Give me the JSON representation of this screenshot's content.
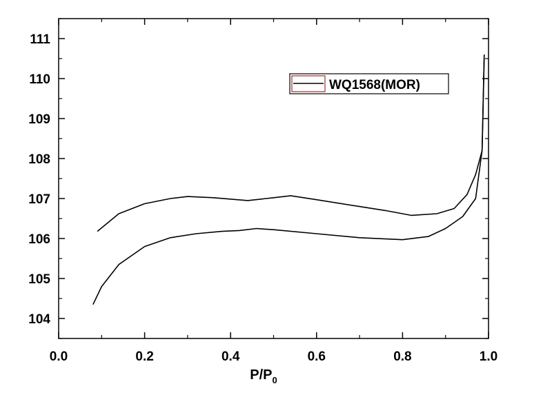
{
  "chart_data": {
    "type": "line",
    "title": "",
    "xlabel": "P/P",
    "xlabel_subscript": "0",
    "ylabel": "",
    "xlim": [
      0.0,
      1.0
    ],
    "ylim": [
      103.5,
      111.5
    ],
    "x_ticks": [
      {
        "value": 0.0,
        "label": "0.0"
      },
      {
        "value": 0.2,
        "label": "0.2"
      },
      {
        "value": 0.4,
        "label": "0.4"
      },
      {
        "value": 0.6,
        "label": "0.6"
      },
      {
        "value": 0.8,
        "label": "0.8"
      },
      {
        "value": 1.0,
        "label": "1.0"
      }
    ],
    "y_ticks": [
      {
        "value": 104,
        "label": "104"
      },
      {
        "value": 105,
        "label": "105"
      },
      {
        "value": 106,
        "label": "106"
      },
      {
        "value": 107,
        "label": "107"
      },
      {
        "value": 108,
        "label": "108"
      },
      {
        "value": 109,
        "label": "109"
      },
      {
        "value": 110,
        "label": "110"
      },
      {
        "value": 111,
        "label": "111"
      }
    ],
    "grid": false,
    "legend": {
      "placement": "top-right",
      "label": "WQ1568(MOR)"
    },
    "line_color": "#000000",
    "legend_swatch_border": "#8b0000",
    "series": [
      {
        "name": "WQ1568(MOR)",
        "segment": "lower",
        "x": [
          0.08,
          0.1,
          0.14,
          0.2,
          0.26,
          0.32,
          0.38,
          0.42,
          0.46,
          0.5,
          0.6,
          0.7,
          0.8,
          0.86,
          0.9,
          0.94,
          0.97,
          0.985,
          0.99
        ],
        "y": [
          104.35,
          104.8,
          105.35,
          105.8,
          106.02,
          106.12,
          106.18,
          106.2,
          106.25,
          106.22,
          106.12,
          106.02,
          105.97,
          106.05,
          106.25,
          106.55,
          107.0,
          108.2,
          110.6
        ]
      },
      {
        "name": "",
        "segment": "upper",
        "x": [
          0.99,
          0.985,
          0.97,
          0.95,
          0.92,
          0.88,
          0.82,
          0.76,
          0.7,
          0.6,
          0.54,
          0.5,
          0.44,
          0.36,
          0.3,
          0.26,
          0.2,
          0.14,
          0.09
        ],
        "y": [
          110.6,
          108.2,
          107.6,
          107.1,
          106.75,
          106.62,
          106.58,
          106.7,
          106.8,
          106.97,
          107.07,
          107.02,
          106.95,
          107.02,
          107.05,
          107.0,
          106.87,
          106.62,
          106.18
        ]
      }
    ]
  }
}
